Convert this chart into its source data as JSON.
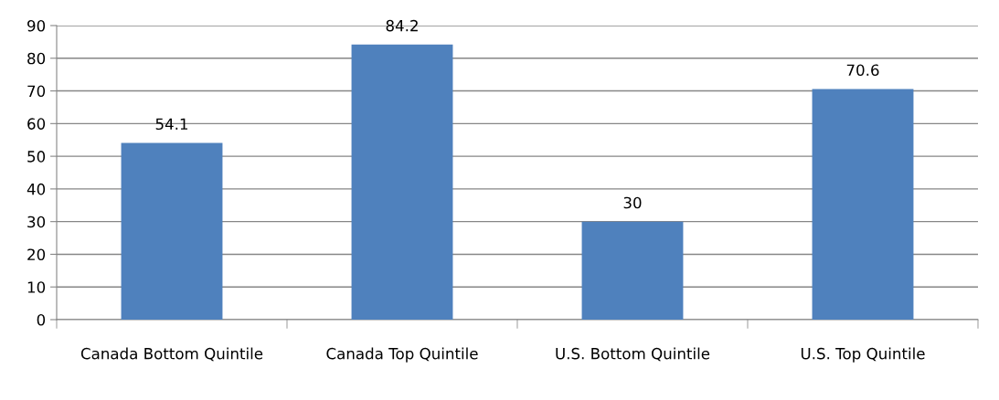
{
  "chart_data": {
    "type": "bar",
    "categories": [
      "Canada Bottom Quintile",
      "Canada Top Quintile",
      "U.S. Bottom Quintile",
      "U.S. Top Quintile"
    ],
    "values": [
      54.1,
      84.2,
      30,
      70.6
    ],
    "color": "#4f81bd",
    "ylim": [
      0,
      90
    ],
    "yticks": [
      0,
      10,
      20,
      30,
      40,
      50,
      60,
      70,
      80,
      90
    ],
    "grid": "y",
    "data_labels": true
  }
}
